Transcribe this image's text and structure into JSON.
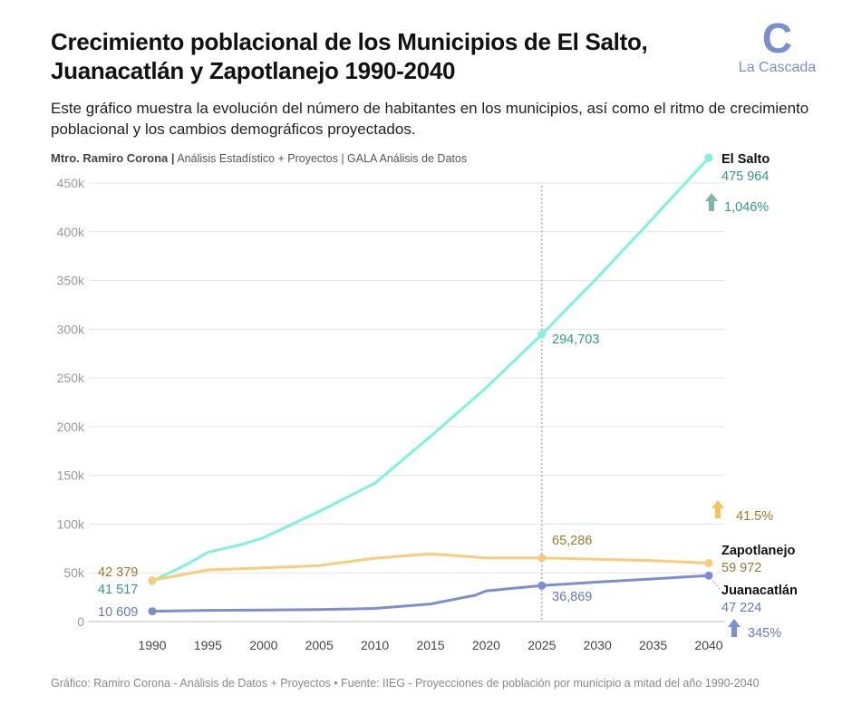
{
  "header": {
    "title": "Crecimiento poblacional de los Municipios de El Salto, Juanacatlán y Zapotlanejo 1990-2040",
    "subtitle": "Este gráfico muestra la evolución del número de habitantes en los municipios, así como el ritmo de crecimiento poblacional y los cambios demográficos proyectados.",
    "author": "Mtro. Ramiro Corona |",
    "byline_rest": "Análisis Estadístico + Proyectos | GALA Análisis de Datos"
  },
  "logo": {
    "glyph": "C",
    "name": "La Cascada",
    "color": "#7b8fd0"
  },
  "footer": {
    "text": "Gráfico: Ramiro Corona - Análisis de Datos + Proyectos • Fuente: IIEG - Proyecciones de población por municipio a mitad del año 1990-2040"
  },
  "chart_data": {
    "type": "line",
    "xlim": [
      1985,
      2041
    ],
    "ylim": [
      0,
      475000
    ],
    "grid": true,
    "y_ticks": [
      0,
      50000,
      100000,
      150000,
      200000,
      250000,
      300000,
      350000,
      400000,
      450000
    ],
    "y_tick_labels": [
      "0",
      "50k",
      "100k",
      "150k",
      "200k",
      "250k",
      "300k",
      "350k",
      "400k",
      "450k"
    ],
    "x_ticks": [
      1990,
      1995,
      2000,
      2005,
      2010,
      2015,
      2020,
      2025,
      2030,
      2035,
      2040
    ],
    "x_tick_labels": [
      "1990",
      "1995",
      "2000",
      "2005",
      "2010",
      "2015",
      "2020",
      "2025",
      "2030",
      "2035",
      "2040"
    ],
    "reference_line": {
      "x": 2025
    },
    "series": [
      {
        "name": "El Salto",
        "color": "#7ef2dc",
        "label_color": "#2f9a80",
        "x": [
          1990,
          1993,
          1995,
          1998,
          2000,
          2005,
          2010,
          2015,
          2020,
          2025,
          2030,
          2035,
          2040
        ],
        "values": [
          41517,
          58000,
          71000,
          79000,
          86000,
          113000,
          142000,
          190000,
          240000,
          294703,
          353000,
          414000,
          475964
        ],
        "start_label": "41 517",
        "mid_label": "294,703",
        "end_label": "475 964",
        "change_label": "1,046%",
        "arrow_color": "#7fb8a5"
      },
      {
        "name": "Zapotlanejo",
        "color": "#f8cc7a",
        "label_color": "#9c7a30",
        "x": [
          1990,
          1995,
          2000,
          2005,
          2010,
          2015,
          2020,
          2025,
          2030,
          2035,
          2040
        ],
        "values": [
          42379,
          53000,
          55000,
          57500,
          65000,
          69500,
          65300,
          65286,
          64000,
          62500,
          59972
        ],
        "start_label": "42 379",
        "mid_label": "65,286",
        "end_label": "59 972",
        "change_label": "41.5%",
        "arrow_color": "#f8c15c"
      },
      {
        "name": "Juanacatlán",
        "color": "#7b8fd0",
        "label_color": "#6778c0",
        "x": [
          1990,
          1995,
          2000,
          2005,
          2010,
          2015,
          2019,
          2020,
          2025,
          2030,
          2035,
          2040
        ],
        "values": [
          10609,
          11500,
          11800,
          12300,
          13500,
          18000,
          27000,
          31500,
          36869,
          40500,
          43800,
          47224
        ],
        "start_label": "10 609",
        "mid_label": "36,869",
        "end_label": "47 224",
        "change_label": "345%",
        "arrow_color": "#7b8fd0"
      }
    ]
  }
}
